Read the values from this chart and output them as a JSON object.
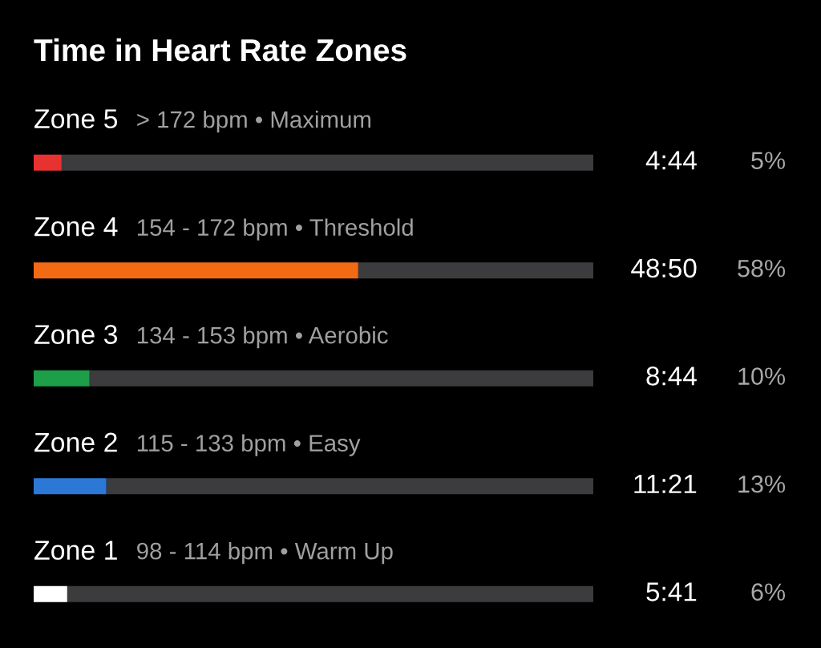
{
  "chart_data": {
    "type": "bar",
    "orientation": "horizontal",
    "stacked": true,
    "title": "Time in Heart Rate Zones",
    "categories": [
      "Zone 5",
      "Zone 4",
      "Zone 3",
      "Zone 2",
      "Zone 1"
    ],
    "series": [
      {
        "colors": [
          "#e8322f",
          "#f36a14",
          "#1d9e48",
          "#2b78d6",
          "#ffffff"
        ],
        "values": [
          5,
          58,
          10,
          13,
          6
        ],
        "value_labels": [
          "5%",
          "58%",
          "10%",
          "13%",
          "6%"
        ]
      },
      {
        "color": "#3c3c3e",
        "values": [
          95,
          42,
          90,
          87,
          94
        ]
      }
    ],
    "xlim": [
      0,
      100
    ],
    "tick_labels": "y",
    "annotations": [
      "> 172 bpm • Maximum",
      "154 - 172 bpm • Threshold",
      "134 - 153 bpm • Aerobic",
      "115 - 133 bpm • Easy",
      "98 - 114 bpm • Warm Up",
      "4:44",
      "48:50",
      "8:44",
      "11:21",
      "5:41"
    ]
  }
}
